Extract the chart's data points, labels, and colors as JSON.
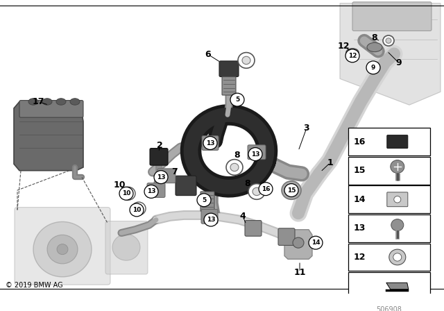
{
  "bg_color": "#ffffff",
  "fig_width": 6.4,
  "fig_height": 4.48,
  "copyright": "© 2019 BMW AG",
  "part_number": "506908",
  "gray_light": "#c8c8c8",
  "gray_mid": "#909090",
  "gray_dark": "#505050",
  "pipe_silver": "#b0b0b0",
  "pipe_dark": "#3a3a3a",
  "pipe_black": "#282828",
  "engine_gray": "#b5b5b5",
  "tank_gray": "#707070",
  "comp_gray": "#c0c0c0"
}
